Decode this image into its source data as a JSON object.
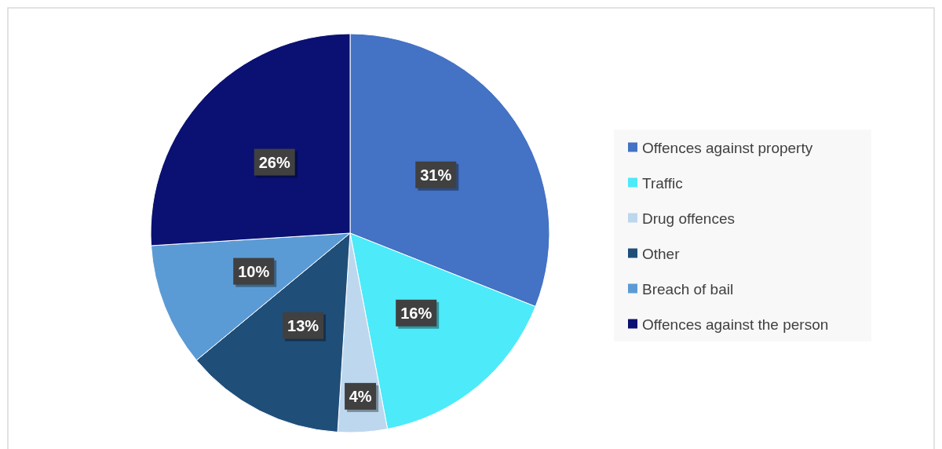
{
  "chart_data": {
    "type": "pie",
    "categories": [
      "Offences against property",
      "Traffic",
      "Drug offences",
      "Other",
      "Breach of bail",
      "Offences against the person"
    ],
    "values": [
      31,
      16,
      4,
      13,
      10,
      26
    ],
    "colors": [
      "#4472c4",
      "#4deaf9",
      "#bdd7ee",
      "#1f4e79",
      "#5b9bd5",
      "#0a1172"
    ],
    "value_labels": [
      "31%",
      "16%",
      "4%",
      "13%",
      "10%",
      "26%"
    ],
    "legend": "right"
  }
}
